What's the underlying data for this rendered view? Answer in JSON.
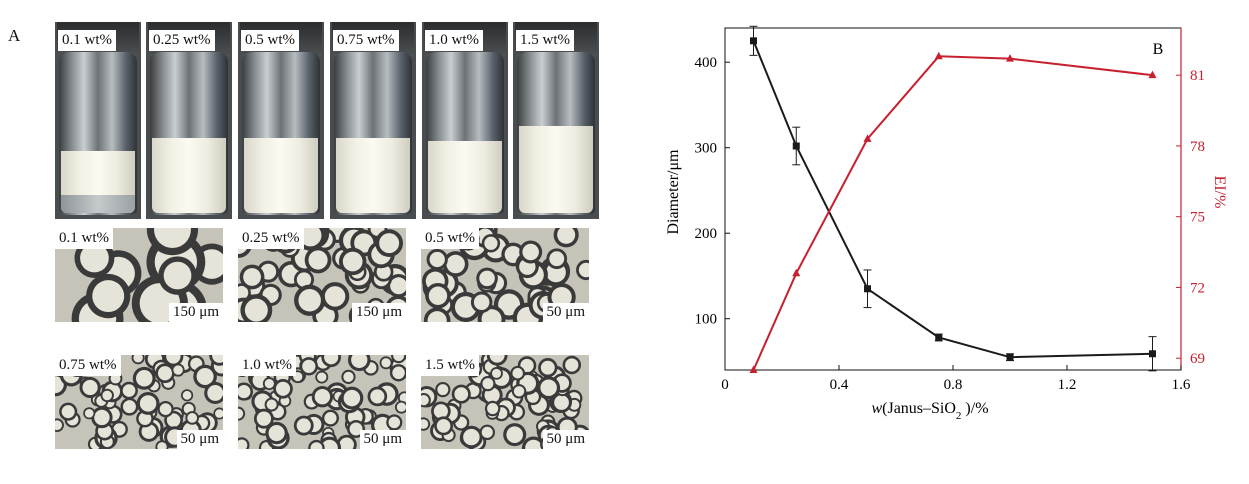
{
  "panel_a": {
    "label": "A",
    "vials": [
      {
        "label": "0.1 wt%",
        "emulsion_fraction": 0.37
      },
      {
        "label": "0.25 wt%",
        "emulsion_fraction": 0.45
      },
      {
        "label": "0.5 wt%",
        "emulsion_fraction": 0.45
      },
      {
        "label": "0.75 wt%",
        "emulsion_fraction": 0.45
      },
      {
        "label": "1.0 wt%",
        "emulsion_fraction": 0.43
      },
      {
        "label": "1.5 wt%",
        "emulsion_fraction": 0.52
      }
    ],
    "micrographs": [
      {
        "label": "0.1 wt%",
        "scale": "150 μm",
        "droplet_density": "sparse"
      },
      {
        "label": "0.25 wt%",
        "scale": "150 μm",
        "droplet_density": "medium"
      },
      {
        "label": "0.5 wt%",
        "scale": "50 μm",
        "droplet_density": "medium"
      },
      {
        "label": "0.75 wt%",
        "scale": "50 μm",
        "droplet_density": "dense"
      },
      {
        "label": "1.0 wt%",
        "scale": "50 μm",
        "droplet_density": "dense"
      },
      {
        "label": "1.5 wt%",
        "scale": "50 μm",
        "droplet_density": "dense"
      }
    ]
  },
  "chart_data": {
    "type": "line",
    "panel_label": "B",
    "xlabel_var": "w",
    "xlabel_rest_1": "(Janus–SiO",
    "xlabel_sub": "2",
    "xlabel_rest_2": " )/%",
    "ylabel_left": "Diameter/μm",
    "ylabel_right": "EI/%",
    "xlim": [
      0,
      1.6
    ],
    "ylim_left": [
      40,
      440
    ],
    "ylim_right": [
      68.5,
      83
    ],
    "xticks": [
      "0",
      "0.4",
      "0.8",
      "1.2",
      "1.6"
    ],
    "yticks_left": [
      "100",
      "200",
      "300",
      "400"
    ],
    "yticks_right": [
      "69",
      "72",
      "75",
      "78",
      "81"
    ],
    "x": [
      0.1,
      0.25,
      0.5,
      0.75,
      1.0,
      1.5
    ],
    "series": [
      {
        "axis": "left",
        "color": "#1a1a1a",
        "marker": "square",
        "values": [
          425,
          302,
          135,
          78,
          55,
          59
        ],
        "errors": [
          17,
          22,
          22,
          4,
          4,
          20
        ]
      },
      {
        "axis": "right",
        "color": "#c8202f",
        "marker": "triangle",
        "values": [
          68.5,
          72.6,
          78.3,
          81.8,
          81.7,
          81.0
        ]
      }
    ]
  }
}
